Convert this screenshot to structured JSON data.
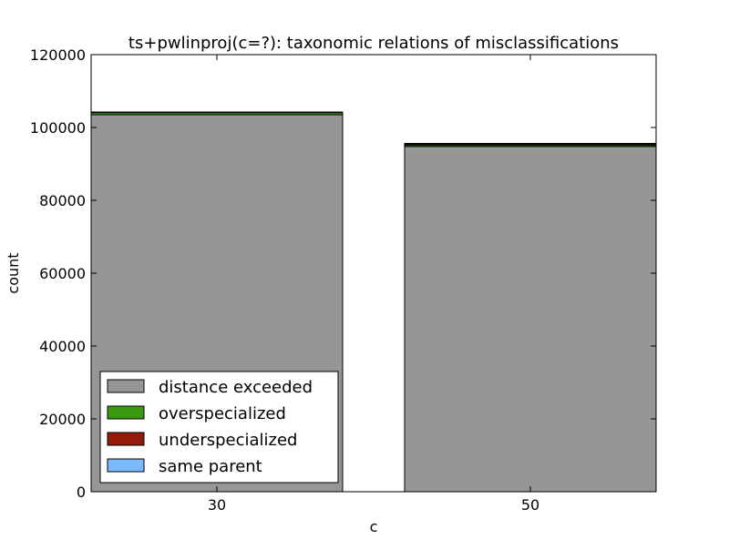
{
  "chart_data": {
    "type": "bar",
    "stacked": true,
    "title": "ts+pwlinproj(c=?): taxonomic relations of misclassifications",
    "xlabel": "c",
    "ylabel": "count",
    "categories": [
      "30",
      "50"
    ],
    "ylim": [
      0,
      120000
    ],
    "yticks": [
      0,
      20000,
      40000,
      60000,
      80000,
      100000,
      120000
    ],
    "ytick_labels": [
      "0",
      "20000",
      "40000",
      "60000",
      "80000",
      "100000",
      "120000"
    ],
    "grid": false,
    "legend_position": "lower-left",
    "series": [
      {
        "name": "distance exceeded",
        "color": "#969696",
        "values": [
          103500,
          94800
        ]
      },
      {
        "name": "overspecialized",
        "color": "#3a9a12",
        "values": [
          600,
          400
        ]
      },
      {
        "name": "underspecialized",
        "color": "#941a0a",
        "values": [
          100,
          350
        ]
      },
      {
        "name": "same parent",
        "color": "#7abaff",
        "values": [
          50,
          80
        ]
      }
    ],
    "legend_order": [
      "distance exceeded",
      "overspecialized",
      "underspecialized",
      "same parent"
    ]
  }
}
